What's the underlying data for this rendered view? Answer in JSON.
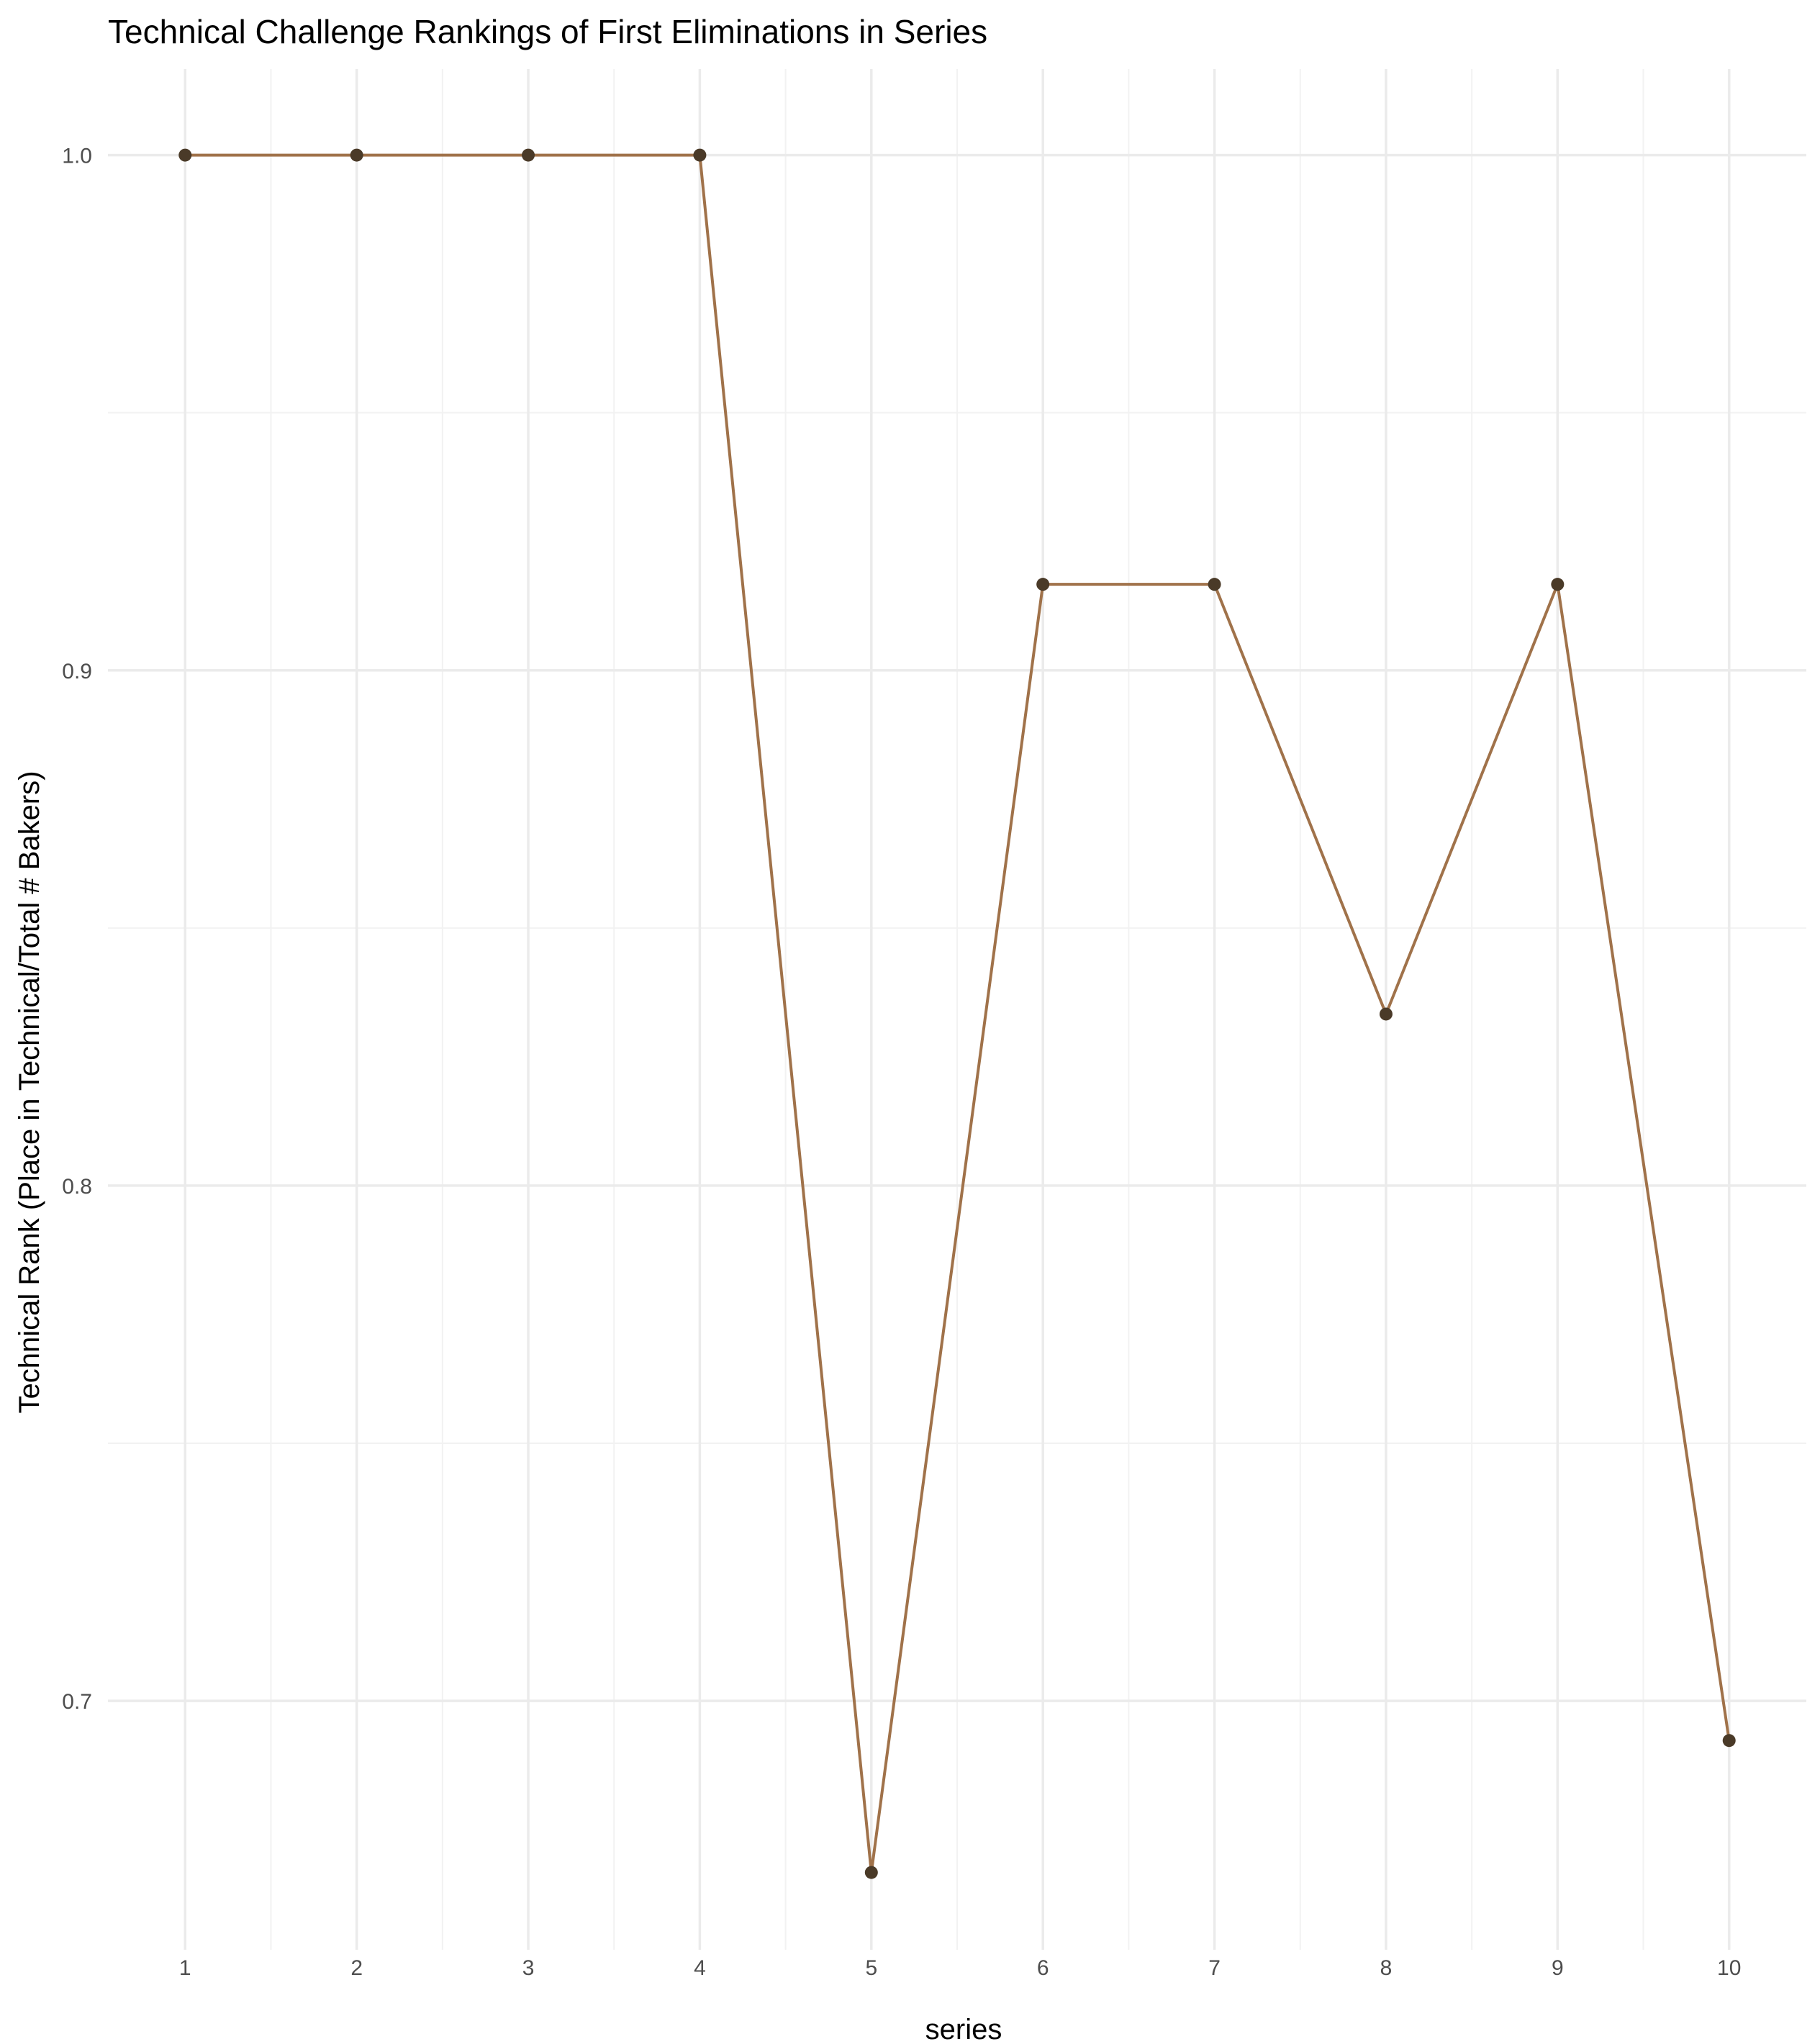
{
  "chart_data": {
    "type": "line",
    "title": "Technical Challenge Rankings of First Eliminations in Series",
    "xlabel": "series",
    "ylabel": "Technical Rank (Place in Technical/Total # Bakers)",
    "x": [
      1,
      2,
      3,
      4,
      5,
      6,
      7,
      8,
      9,
      10
    ],
    "x_ticks": [
      "1",
      "2",
      "3",
      "4",
      "5",
      "6",
      "7",
      "8",
      "9",
      "10"
    ],
    "y_ticks": [
      "0.7",
      "0.8",
      "0.9",
      "1.0"
    ],
    "xlim": [
      0.55,
      10.45
    ],
    "ylim": [
      0.6517,
      1.0167
    ],
    "series": [
      {
        "values": [
          1.0,
          1.0,
          1.0,
          1.0,
          0.6667,
          0.9167,
          0.9167,
          0.8333,
          0.9167,
          0.6923
        ]
      }
    ],
    "line_color": "#a0724a",
    "point_color": "#4a3a28",
    "grid": true,
    "legend": "none"
  }
}
